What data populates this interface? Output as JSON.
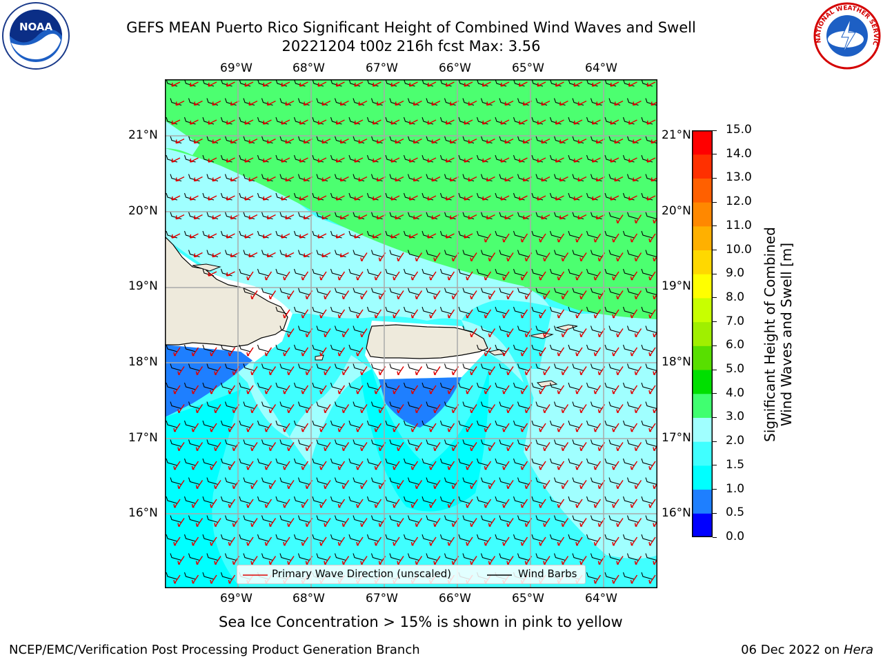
{
  "title": {
    "line1": "GEFS MEAN Puerto Rico Significant Height of Combined Wind Waves and Swell",
    "line2": "20221204 t00z 216h fcst   Max: 3.56"
  },
  "logos": {
    "left": "NOAA",
    "right": "NATIONAL WEATHER SERVICE"
  },
  "map": {
    "region": "Puerto Rico",
    "lon_labels": [
      "69°W",
      "68°W",
      "67°W",
      "66°W",
      "65°W",
      "64°W"
    ],
    "lat_labels": [
      "21°N",
      "20°N",
      "19°N",
      "18°N",
      "17°N",
      "16°N"
    ],
    "lon_range": [
      -70.0,
      -63.25
    ],
    "lat_range": [
      15.05,
      21.75
    ],
    "grid": true
  },
  "legend": {
    "primary_wave": "Primary Wave Direction (unscaled)",
    "wind_barbs": "Wind Barbs"
  },
  "colorbar": {
    "label_line1": "Significant Height of Combined",
    "label_line2": "Wind Waves and Swell [m]",
    "ticks": [
      "0.0",
      "0.5",
      "1.0",
      "1.5",
      "2.0",
      "3.0",
      "4.0",
      "5.0",
      "6.0",
      "7.0",
      "8.0",
      "9.0",
      "10.0",
      "11.0",
      "12.0",
      "13.0",
      "14.0",
      "15.0"
    ],
    "colors": [
      "#0000ff",
      "#1e7fff",
      "#00ffff",
      "#40ffff",
      "#a0ffff",
      "#40ff70",
      "#00df00",
      "#58df00",
      "#a0ef00",
      "#c8ff00",
      "#ffff00",
      "#ffd800",
      "#ffb000",
      "#ff8800",
      "#ff6000",
      "#ff3000",
      "#ff0000"
    ]
  },
  "sea_ice_note": "Sea Ice Concentration > 15% is shown in pink to yellow",
  "footer": {
    "left": "NCEP/EMC/Verification Post Processing Product Generation Branch",
    "right_date": "06 Dec 2022 on ",
    "right_host": "Hera"
  },
  "max_value": 3.56
}
